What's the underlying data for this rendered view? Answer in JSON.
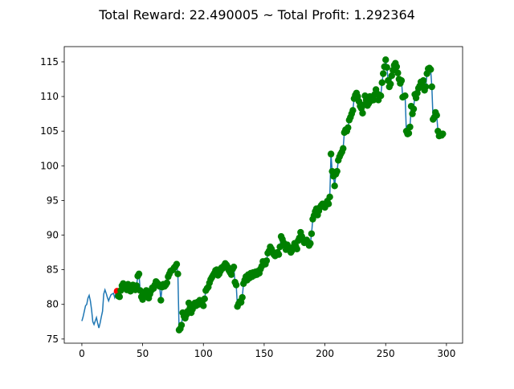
{
  "chart_data": {
    "type": "line",
    "title": "Total Reward: 22.490005 ~ Total Profit: 1.292364",
    "xlim": [
      -14.5,
      313.3
    ],
    "ylim": [
      74.4,
      117.2
    ],
    "xticks": [
      0,
      50,
      100,
      150,
      200,
      250,
      300
    ],
    "yticks": [
      75,
      80,
      85,
      90,
      95,
      100,
      105,
      110,
      115
    ],
    "series": [
      {
        "color": "#1f77b4",
        "values": [
          77.6,
          78.2,
          79,
          79.8,
          80,
          80.9,
          81.3,
          80.5,
          79.2,
          77.5,
          77.1,
          77.6,
          78.1,
          77.3,
          76.6,
          77.3,
          78.2,
          79,
          81.5,
          82.1,
          81.6,
          81,
          80.5,
          81,
          81.4,
          81.5,
          81.6,
          81,
          81.6,
          81.9,
          81.2,
          81.1,
          82,
          82.7,
          83,
          82.5,
          82.8,
          82.1,
          82.9,
          82.4,
          81.9,
          82.6,
          82.8,
          82.3,
          82.1,
          82.7,
          84.1,
          84.4,
          82,
          81.1,
          80.7,
          81.2,
          81.8,
          82,
          81.2,
          80.9,
          81.5,
          82,
          82.4,
          82.3,
          82.8,
          83.3,
          83.1,
          82.9,
          82.6,
          80.6,
          82.5,
          82.9,
          82.6,
          82.8,
          83.1,
          84,
          84.4,
          84.8,
          84.9,
          85,
          85.3,
          85.5,
          85.8,
          84.4,
          76.3,
          76.5,
          77,
          78.8,
          78.3,
          78,
          78.5,
          79,
          80.2,
          79.5,
          78.8,
          79.3,
          79.8,
          80.2,
          79.8,
          80.3,
          80,
          80.6,
          80.1,
          80.4,
          79.8,
          80.8,
          82,
          82.3,
          82.5,
          83.1,
          83.6,
          83.9,
          84.2,
          84.5,
          84.9,
          85,
          84.2,
          84.4,
          84.8,
          85.3,
          85.2,
          85.6,
          85.9,
          85.7,
          85.4,
          84.9,
          84.6,
          84.3,
          85.1,
          85.4,
          83.2,
          82.8,
          79.7,
          80.1,
          80.4,
          80.3,
          81,
          83,
          83.5,
          84,
          83.5,
          84.3,
          83.8,
          84.5,
          84,
          84.6,
          84.2,
          84.7,
          84.3,
          84.8,
          84.5,
          85.1,
          85.5,
          86.2,
          86.1,
          85.8,
          86.3,
          87.4,
          87.7,
          88.3,
          88,
          87.6,
          87.2,
          87,
          87.3,
          87.5,
          87.2,
          88.3,
          89.8,
          89.4,
          88.9,
          88.5,
          87.9,
          88.6,
          88.2,
          88,
          87.5,
          87.8,
          88.3,
          88.8,
          88.4,
          88,
          89.2,
          89.6,
          90.4,
          89.8,
          89.3,
          88.9,
          89,
          89.3,
          88.9,
          88.5,
          88.8,
          90.2,
          92.3,
          92.8,
          93.4,
          93.8,
          92.9,
          93.5,
          94,
          94.3,
          94.5,
          94.2,
          94,
          94.6,
          94.9,
          94.5,
          95.5,
          101.7,
          99.2,
          98.5,
          97.1,
          98.8,
          99.2,
          100.8,
          101.3,
          101.7,
          102,
          102.5,
          104.8,
          105.2,
          105,
          105.5,
          106.6,
          107,
          107.5,
          108,
          109.7,
          110.2,
          110.5,
          110,
          109.3,
          108.6,
          108.3,
          107.6,
          108.8,
          110.1,
          109.5,
          108.7,
          109,
          110,
          109.4,
          109.9,
          109.5,
          110.3,
          111,
          110.4,
          109.5,
          110.2,
          110.1,
          112,
          113.3,
          114.3,
          115.3,
          114.2,
          112.3,
          111.4,
          111.8,
          113,
          113.8,
          114.5,
          114.8,
          114.3,
          113.4,
          112.5,
          111.9,
          112.3,
          109.9,
          110,
          110.1,
          105,
          104.6,
          104.7,
          105.6,
          108.6,
          107.5,
          108.2,
          110.3,
          109.8,
          110.5,
          111.2,
          111.5,
          112.1,
          111.6,
          112.3,
          110.9,
          111.4,
          113.3,
          114,
          114.1,
          113.9,
          111.4,
          106.7,
          107,
          107.7,
          107.3,
          105,
          104.3,
          104.5,
          104.4,
          104.6
        ]
      },
      {
        "color": "red",
        "x": [
          29
        ]
      },
      {
        "color": "green",
        "x": [
          30,
          31,
          32,
          33,
          34,
          35,
          36,
          37,
          38,
          39,
          40,
          41,
          42,
          43,
          44,
          45,
          46,
          47,
          48,
          49,
          50,
          51,
          52,
          53,
          54,
          55,
          56,
          57,
          58,
          59,
          60,
          61,
          62,
          63,
          64,
          65,
          66,
          67,
          68,
          69,
          70,
          71,
          72,
          73,
          74,
          75,
          76,
          77,
          78,
          79,
          80,
          81,
          82,
          83,
          84,
          85,
          86,
          87,
          88,
          89,
          90,
          91,
          92,
          93,
          94,
          95,
          96,
          97,
          98,
          99,
          100,
          101,
          102,
          103,
          104,
          105,
          106,
          107,
          108,
          109,
          110,
          111,
          112,
          113,
          114,
          115,
          116,
          117,
          118,
          119,
          120,
          121,
          122,
          123,
          124,
          125,
          126,
          127,
          128,
          129,
          130,
          131,
          132,
          133,
          134,
          135,
          136,
          137,
          138,
          139,
          140,
          141,
          142,
          143,
          144,
          145,
          146,
          147,
          148,
          149,
          150,
          151,
          152,
          153,
          154,
          155,
          156,
          157,
          158,
          159,
          160,
          161,
          162,
          163,
          164,
          165,
          166,
          167,
          168,
          169,
          170,
          171,
          172,
          173,
          174,
          175,
          176,
          177,
          178,
          179,
          180,
          181,
          182,
          183,
          184,
          185,
          186,
          187,
          188,
          189,
          190,
          191,
          192,
          193,
          194,
          195,
          196,
          197,
          198,
          199,
          200,
          201,
          202,
          203,
          204,
          205,
          206,
          207,
          208,
          209,
          210,
          211,
          212,
          213,
          214,
          215,
          216,
          217,
          218,
          219,
          220,
          221,
          222,
          223,
          224,
          225,
          226,
          227,
          228,
          229,
          230,
          231,
          232,
          233,
          234,
          235,
          236,
          237,
          238,
          239,
          240,
          241,
          242,
          243,
          244,
          245,
          246,
          247,
          248,
          249,
          250,
          251,
          252,
          253,
          254,
          255,
          256,
          257,
          258,
          259,
          260,
          261,
          262,
          263,
          264,
          265,
          266,
          267,
          268,
          269,
          270,
          271,
          272,
          273,
          274,
          275,
          276,
          277,
          278,
          279,
          280,
          281,
          282,
          283,
          284,
          285,
          286,
          287,
          288,
          289,
          290,
          291,
          292,
          293,
          294,
          295,
          296,
          297
        ]
      }
    ]
  }
}
